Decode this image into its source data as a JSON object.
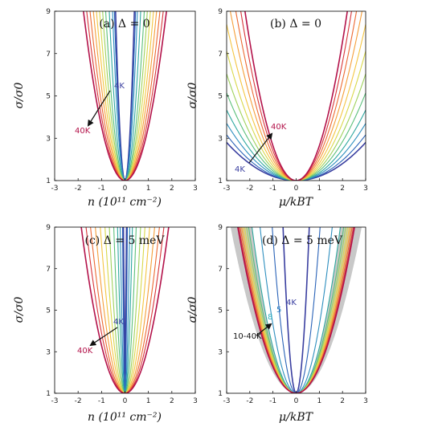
{
  "curve_colors": [
    "#3a3fa0",
    "#2a63b8",
    "#2e8fbf",
    "#2fa8a0",
    "#5bbf7a",
    "#9fd15c",
    "#d9d84b",
    "#f4c542",
    "#f59e3a",
    "#ec6a33",
    "#d8363a",
    "#b3124a"
  ],
  "shade_color": "#c8c8c8",
  "chart_data": [
    {
      "type": "line",
      "title": "(a) Δ = 0",
      "xlabel": "n (10¹¹ cm⁻²)",
      "ylabel": "σ/σ0",
      "xlim": [
        -3,
        3
      ],
      "ylim": [
        1,
        9
      ],
      "xticks": [
        "-3",
        "-2",
        "-1",
        "0",
        "1",
        "2",
        "3"
      ],
      "yticks": [
        "1",
        "3",
        "5",
        "7",
        "9"
      ],
      "series": [
        {
          "name": "4K",
          "k": 49.6
        },
        {
          "name": "",
          "k": 39.2
        },
        {
          "name": "",
          "k": 28.5
        },
        {
          "name": "",
          "k": 17.8
        },
        {
          "name": "",
          "k": 11.8
        },
        {
          "name": "",
          "k": 8.8
        },
        {
          "name": "",
          "k": 6.8
        },
        {
          "name": "",
          "k": 5.4
        },
        {
          "name": "",
          "k": 4.4
        },
        {
          "name": "",
          "k": 3.6
        },
        {
          "name": "",
          "k": 3.0
        },
        {
          "name": "40K",
          "k": 2.55
        }
      ],
      "annotations": [
        {
          "text": "4K",
          "color": "#3a3fa0"
        },
        {
          "text": "40K",
          "color": "#b3124a"
        }
      ]
    },
    {
      "type": "line",
      "title": "(b) Δ = 0",
      "xlabel": "μ/kBT",
      "ylabel": "σ/σ0",
      "xlim": [
        -3,
        3
      ],
      "ylim": [
        1,
        9
      ],
      "xticks": [
        "-3",
        "-2",
        "-1",
        "0",
        "1",
        "2",
        "3"
      ],
      "yticks": [
        "1",
        "3",
        "5",
        "7",
        "9"
      ],
      "series": [
        {
          "name": "4K",
          "k": 0.2
        },
        {
          "name": "",
          "k": 0.24
        },
        {
          "name": "",
          "k": 0.3
        },
        {
          "name": "",
          "k": 0.37
        },
        {
          "name": "",
          "k": 0.46
        },
        {
          "name": "",
          "k": 0.56
        },
        {
          "name": "",
          "k": 0.68
        },
        {
          "name": "",
          "k": 0.82
        },
        {
          "name": "",
          "k": 0.99
        },
        {
          "name": "",
          "k": 1.18
        },
        {
          "name": "",
          "k": 1.4
        },
        {
          "name": "40K",
          "k": 1.64
        }
      ],
      "annotations": [
        {
          "text": "40K",
          "color": "#b3124a"
        },
        {
          "text": "4K",
          "color": "#3a3fa0"
        }
      ]
    },
    {
      "type": "line",
      "title": "(c) Δ = 5 meV",
      "xlabel": "n (10¹¹ cm⁻²)",
      "ylabel": "σ/σ0",
      "xlim": [
        -3,
        3
      ],
      "ylim": [
        1,
        9
      ],
      "xticks": [
        "-3",
        "-2",
        "-1",
        "0",
        "1",
        "2",
        "3"
      ],
      "yticks": [
        "1",
        "3",
        "5",
        "7",
        "9"
      ],
      "series": [
        {
          "name": "4K",
          "k": 3200
        },
        {
          "name": "",
          "k": 800
        },
        {
          "name": "",
          "k": 200
        },
        {
          "name": "",
          "k": 80
        },
        {
          "name": "",
          "k": 35
        },
        {
          "name": "",
          "k": 18
        },
        {
          "name": "",
          "k": 11
        },
        {
          "name": "",
          "k": 7.2
        },
        {
          "name": "",
          "k": 5.0
        },
        {
          "name": "",
          "k": 3.7
        },
        {
          "name": "",
          "k": 2.9
        },
        {
          "name": "40K",
          "k": 2.3
        }
      ],
      "annotations": [
        {
          "text": "4K",
          "color": "#3a3fa0"
        },
        {
          "text": "40K",
          "color": "#b3124a"
        }
      ]
    },
    {
      "type": "line",
      "title": "(d) Δ = 5 meV",
      "xlabel": "μ/kBT",
      "ylabel": "σ/σ0",
      "xlim": [
        -3,
        3
      ],
      "ylim": [
        1,
        9
      ],
      "xticks": [
        "-3",
        "-2",
        "-1",
        "0",
        "1",
        "2",
        "3"
      ],
      "yticks": [
        "1",
        "3",
        "5",
        "7",
        "9"
      ],
      "shaded_band": {
        "k_low": 1.0,
        "k_high": 2.2
      },
      "series": [
        {
          "name": "4K",
          "k": 25.0
        },
        {
          "name": "5",
          "k": 7.5
        },
        {
          "name": "8",
          "k": 3.3
        },
        {
          "name": "",
          "k": 2.2
        },
        {
          "name": "",
          "k": 1.9
        },
        {
          "name": "",
          "k": 1.75
        },
        {
          "name": "",
          "k": 1.62
        },
        {
          "name": "",
          "k": 1.52
        },
        {
          "name": "",
          "k": 1.44
        },
        {
          "name": "",
          "k": 1.37
        },
        {
          "name": "",
          "k": 1.31
        },
        {
          "name": "10-40K",
          "k": 1.26
        }
      ],
      "annotations": [
        {
          "text": "4K",
          "color": "#3a3fa0"
        },
        {
          "text": "5",
          "color": "#2a7fc0"
        },
        {
          "text": "8",
          "color": "#2fb0c0"
        },
        {
          "text": "10-40K",
          "color": "#111111"
        }
      ]
    }
  ]
}
